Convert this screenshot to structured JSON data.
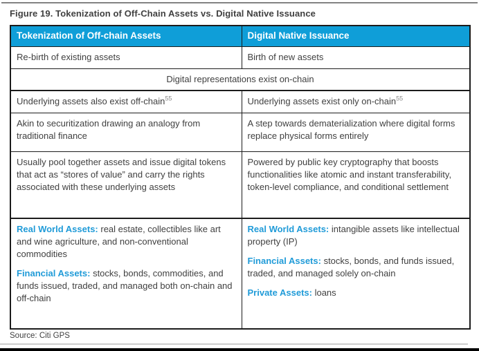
{
  "figure": {
    "title": "Figure 19. Tokenization of Off-Chain Assets vs. Digital Native Issuance"
  },
  "table": {
    "headers": [
      "Tokenization of Off-chain Assets",
      "Digital Native Issuance"
    ],
    "rows": [
      {
        "left": "Re-birth of existing assets",
        "right": "Birth of new assets"
      },
      {
        "merged": "Digital representations exist on-chain"
      },
      {
        "left": "Underlying assets also exist off-chain",
        "left_sup": "55",
        "right": "Underlying assets exist only on-chain",
        "right_sup": "55"
      },
      {
        "left": "Akin to securitization drawing an analogy from traditional finance",
        "right": "A step towards dematerialization where digital forms replace physical forms entirely"
      },
      {
        "left": "Usually pool together assets and issue digital tokens that act as “stores of value” and carry the rights associated with these underlying assets",
        "right": "Powered by public key cryptography that boosts functionalities like atomic and instant transferability, token-level compliance, and conditional settlement"
      },
      {
        "left_paragraphs": [
          {
            "label": "Real World Assets:",
            "text": " real estate, collectibles like art and wine agriculture, and non-conventional commodities"
          },
          {
            "label": "Financial Assets:",
            "text": " stocks, bonds, commodities, and funds issued, traded, and managed both on-chain and off-chain"
          }
        ],
        "right_paragraphs": [
          {
            "label": "Real World Assets:",
            "text": " intangible assets like intellectual property (IP)"
          },
          {
            "label": "Financial Assets:",
            "text": " stocks, bonds, and funds issued, traded, and managed solely on-chain"
          },
          {
            "label": "Private Assets:",
            "text": " loans"
          }
        ]
      }
    ]
  },
  "source": "Source: Citi GPS",
  "colors": {
    "header_bg": "#0f9ed8",
    "header_text": "#ffffff",
    "category_label": "#209bd8",
    "body_text": "#3f3f3f",
    "title_text": "#404040",
    "border": "#1b1b1b"
  }
}
